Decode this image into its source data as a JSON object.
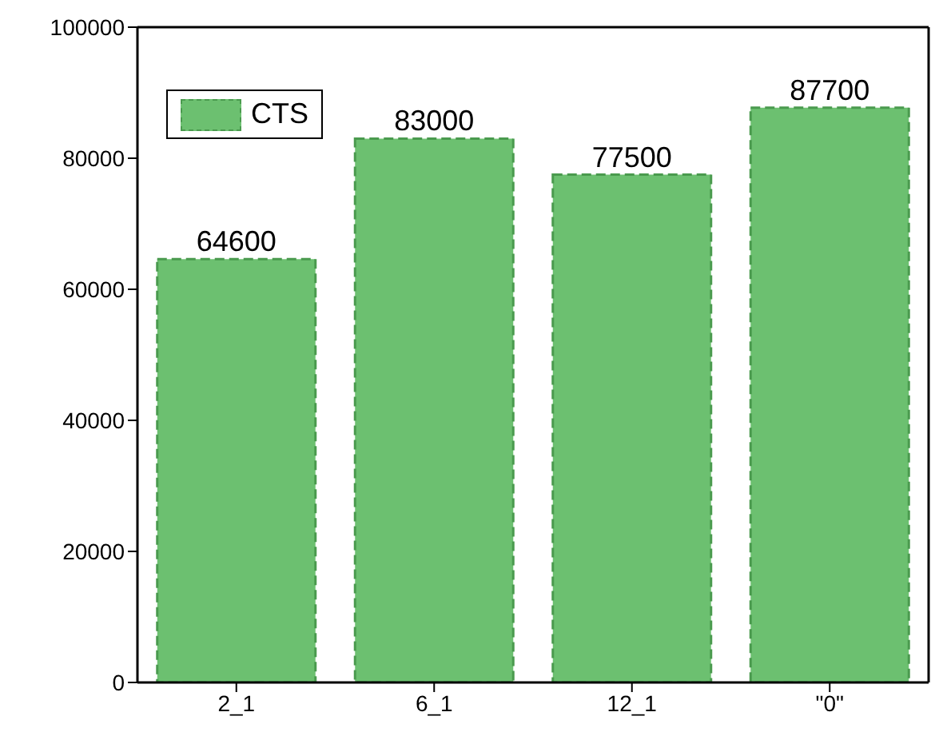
{
  "chart_data": {
    "type": "bar",
    "categories": [
      "2_1",
      "6_1",
      "12_1",
      "\"0\""
    ],
    "series": [
      {
        "name": "CTS",
        "color": "#6cc070",
        "values": [
          64600,
          83000,
          77500,
          87700
        ]
      }
    ],
    "ylim": [
      0,
      100000
    ],
    "yticks": [
      0,
      20000,
      40000,
      60000,
      80000,
      100000
    ],
    "data_labels": true,
    "legend": "top left",
    "grid": false
  }
}
